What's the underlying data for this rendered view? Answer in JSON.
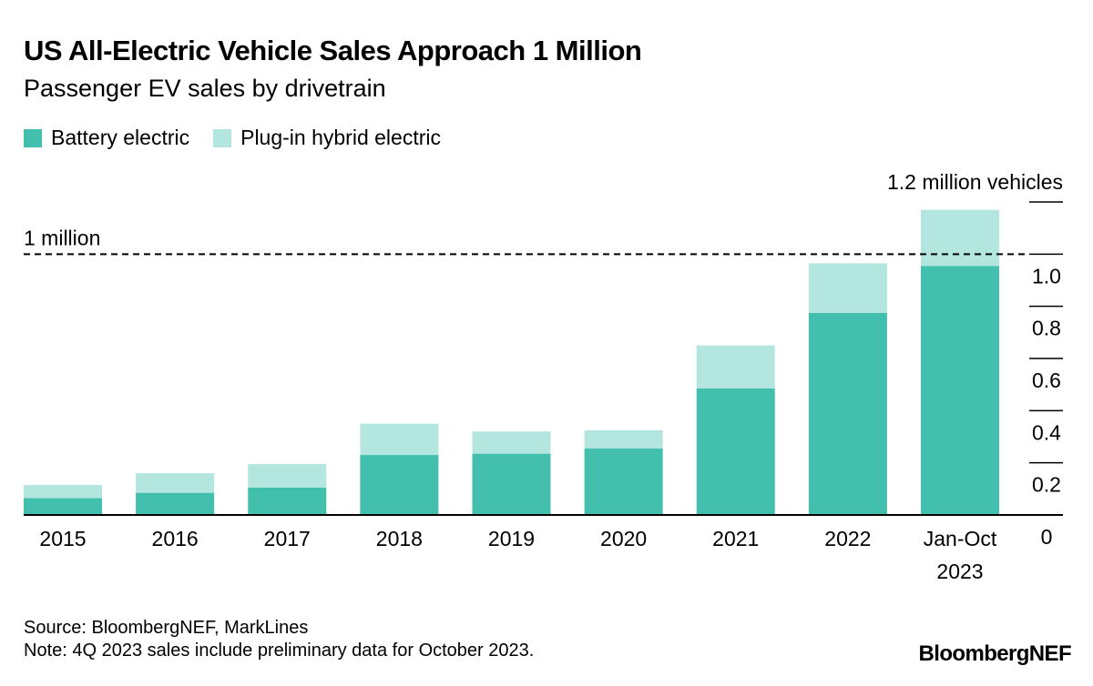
{
  "title": "US All-Electric Vehicle Sales Approach 1 Million",
  "subtitle": "Passenger EV sales by drivetrain",
  "legend": {
    "bev": "Battery electric",
    "phev": "Plug-in hybrid electric"
  },
  "source": "Source: BloombergNEF, MarkLines",
  "note": "Note: 4Q 2023 sales include preliminary data for October 2023.",
  "logo": "BloombergNEF",
  "colors": {
    "bev": "#43bfae",
    "phev": "#b3e6df"
  },
  "chart_data": {
    "type": "bar",
    "stacked": true,
    "title": "US All-Electric Vehicle Sales Approach 1 Million",
    "subtitle": "Passenger EV sales by drivetrain",
    "categories": [
      "2015",
      "2016",
      "2017",
      "2018",
      "2019",
      "2020",
      "2021",
      "2022",
      "Jan-Oct 2023"
    ],
    "category_lines": [
      [
        "2015"
      ],
      [
        "2016"
      ],
      [
        "2017"
      ],
      [
        "2018"
      ],
      [
        "2019"
      ],
      [
        "2020"
      ],
      [
        "2021"
      ],
      [
        "2022"
      ],
      [
        "Jan-Oct",
        "2023"
      ]
    ],
    "series": [
      {
        "name": "Battery electric",
        "values": [
          0.065,
          0.085,
          0.105,
          0.23,
          0.235,
          0.255,
          0.485,
          0.775,
          0.955
        ]
      },
      {
        "name": "Plug-in hybrid electric",
        "values": [
          0.05,
          0.075,
          0.09,
          0.12,
          0.085,
          0.07,
          0.165,
          0.19,
          0.215
        ]
      }
    ],
    "ylabel": "million vehicles",
    "ylim": [
      0,
      1.2
    ],
    "yticks": [
      0,
      0.2,
      0.4,
      0.6,
      0.8,
      1.0,
      1.2
    ],
    "ytick_labels": [
      "0",
      "0.2",
      "0.4",
      "0.6",
      "0.8",
      "1.0",
      "1.2 million vehicles"
    ],
    "reference_line": {
      "value": 1.0,
      "label": "1 million",
      "style": "dashed"
    },
    "axis_position": "right",
    "grid": false
  }
}
